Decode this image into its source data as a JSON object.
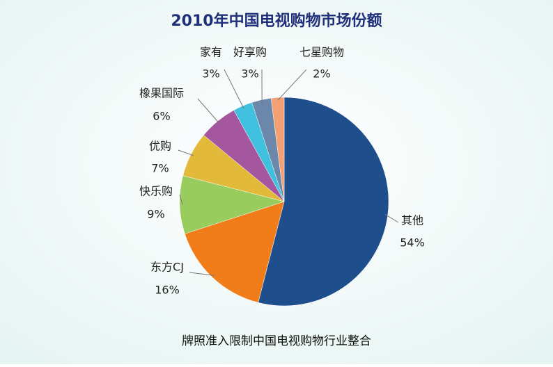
{
  "chart_data": {
    "type": "pie",
    "title": "2010年中国电视购物市场份额",
    "caption": "牌照准入限制中国电视购物行业整合",
    "categories": [
      "其他",
      "东方CJ",
      "快乐购",
      "优购",
      "橡果国际",
      "家有",
      "好享购",
      "七星购物"
    ],
    "values": [
      54,
      16,
      9,
      7,
      6,
      3,
      3,
      2
    ],
    "value_labels": [
      "54%",
      "16%",
      "9%",
      "7%",
      "6%",
      "3%",
      "3%",
      "2%"
    ],
    "colors": [
      "#1f4e8c",
      "#f07c1a",
      "#98cc5c",
      "#e3b93a",
      "#a4579e",
      "#3ec0de",
      "#6b87aa",
      "#f3a074"
    ]
  }
}
